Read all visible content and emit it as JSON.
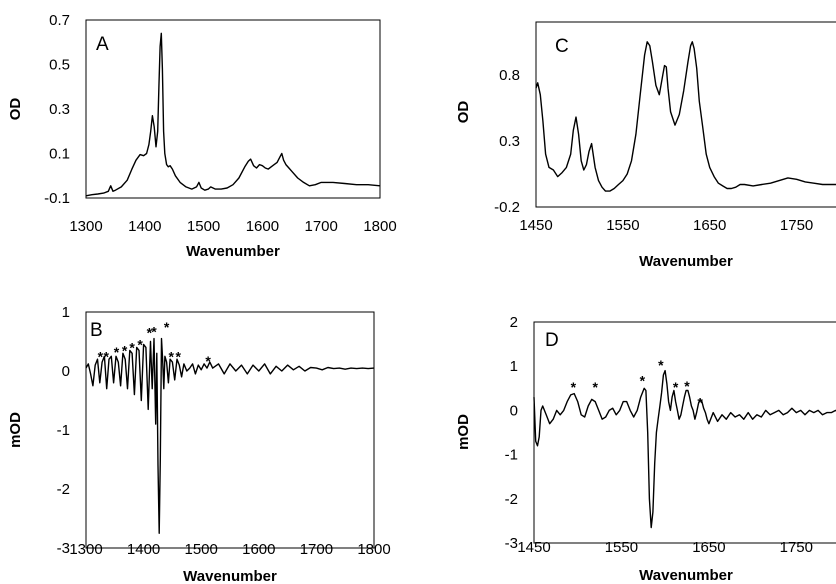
{
  "chart_data": [
    {
      "panel": "A",
      "type": "line",
      "xlabel": "Wavenumber",
      "ylabel": "OD",
      "xlim": [
        1300,
        1800
      ],
      "ylim": [
        -0.1,
        0.7
      ],
      "xticks": [
        "1300",
        "1400",
        "1500",
        "1600",
        "1700",
        "1800"
      ],
      "yticks": [
        "-0.1",
        "0.1",
        "0.3",
        "0.5",
        "0.7"
      ],
      "series": [
        {
          "x": [
            1300,
            1310,
            1320,
            1330,
            1338,
            1342,
            1346,
            1350,
            1360,
            1370,
            1378,
            1385,
            1392,
            1398,
            1403,
            1407,
            1410,
            1413,
            1416,
            1419,
            1422,
            1424,
            1426,
            1428,
            1430,
            1432,
            1434,
            1437,
            1440,
            1443,
            1447,
            1452,
            1460,
            1470,
            1480,
            1488,
            1492,
            1496,
            1502,
            1508,
            1512,
            1520,
            1530,
            1540,
            1550,
            1560,
            1570,
            1576,
            1580,
            1585,
            1590,
            1595,
            1600,
            1605,
            1610,
            1615,
            1620,
            1625,
            1630,
            1633,
            1636,
            1640,
            1645,
            1650,
            1660,
            1670,
            1680,
            1690,
            1700,
            1720,
            1740,
            1760,
            1780,
            1800
          ],
          "y": [
            -0.09,
            -0.085,
            -0.082,
            -0.078,
            -0.07,
            -0.045,
            -0.07,
            -0.065,
            -0.05,
            -0.02,
            0.03,
            0.07,
            0.095,
            0.09,
            0.1,
            0.14,
            0.2,
            0.27,
            0.22,
            0.13,
            0.2,
            0.4,
            0.58,
            0.64,
            0.48,
            0.2,
            0.1,
            0.05,
            0.04,
            0.045,
            0.03,
            0.0,
            -0.03,
            -0.05,
            -0.06,
            -0.05,
            -0.03,
            -0.055,
            -0.065,
            -0.06,
            -0.05,
            -0.06,
            -0.06,
            -0.055,
            -0.04,
            -0.01,
            0.04,
            0.065,
            0.075,
            0.045,
            0.035,
            0.05,
            0.045,
            0.035,
            0.03,
            0.04,
            0.05,
            0.06,
            0.085,
            0.1,
            0.07,
            0.05,
            0.035,
            0.02,
            -0.01,
            -0.03,
            -0.045,
            -0.04,
            -0.03,
            -0.03,
            -0.035,
            -0.04,
            -0.04,
            -0.045
          ]
        }
      ],
      "stars": []
    },
    {
      "panel": "B",
      "type": "line",
      "xlabel": "Wavenumber",
      "ylabel": "mOD",
      "xlim": [
        1300,
        1800
      ],
      "ylim": [
        -3,
        1
      ],
      "xticks": [
        "1300",
        "1400",
        "1500",
        "1600",
        "1700",
        "1800"
      ],
      "yticks": [
        "-3",
        "-2",
        "-1",
        "0",
        "1"
      ],
      "series": [
        {
          "x": [
            1300,
            1304,
            1308,
            1312,
            1316,
            1320,
            1324,
            1328,
            1332,
            1336,
            1340,
            1344,
            1348,
            1352,
            1356,
            1360,
            1364,
            1368,
            1372,
            1376,
            1380,
            1384,
            1388,
            1392,
            1396,
            1400,
            1404,
            1408,
            1412,
            1415,
            1418,
            1421,
            1423,
            1425,
            1427,
            1429,
            1431,
            1433,
            1435,
            1437,
            1440,
            1443,
            1446,
            1450,
            1454,
            1458,
            1462,
            1466,
            1470,
            1475,
            1480,
            1485,
            1490,
            1495,
            1500,
            1505,
            1510,
            1515,
            1520,
            1530,
            1540,
            1550,
            1560,
            1570,
            1580,
            1590,
            1600,
            1610,
            1620,
            1630,
            1640,
            1650,
            1660,
            1670,
            1680,
            1690,
            1700,
            1710,
            1720,
            1730,
            1740,
            1750,
            1760,
            1770,
            1780,
            1790,
            1800
          ],
          "y": [
            0.05,
            0.12,
            -0.05,
            -0.25,
            0.1,
            0.2,
            -0.2,
            0.15,
            0.25,
            -0.3,
            0.2,
            0.25,
            -0.2,
            0.25,
            0.15,
            -0.25,
            0.3,
            0.2,
            -0.3,
            0.35,
            0.3,
            -0.4,
            0.4,
            0.35,
            -0.5,
            0.45,
            0.4,
            -0.65,
            0.5,
            -0.3,
            0.55,
            -0.9,
            0.3,
            -1.6,
            -2.75,
            -1.5,
            0.55,
            0.2,
            -0.3,
            0.25,
            0.15,
            -0.2,
            0.2,
            0.15,
            -0.15,
            0.2,
            0.1,
            -0.1,
            0.12,
            0.0,
            0.05,
            0.12,
            -0.05,
            0.1,
            0.02,
            0.12,
            0.05,
            0.15,
            0.05,
            0.12,
            -0.05,
            0.12,
            0.0,
            0.1,
            -0.05,
            0.1,
            0.0,
            0.12,
            -0.05,
            0.08,
            0.0,
            0.1,
            0.02,
            0.08,
            0.0,
            0.06,
            0.05,
            0.02,
            0.06,
            0.04,
            0.05,
            0.03,
            0.05,
            0.04,
            0.05,
            0.04,
            0.05
          ]
        }
      ],
      "stars": [
        {
          "x": 1325,
          "y": 0.3,
          "text": "*"
        },
        {
          "x": 1335,
          "y": 0.3,
          "text": "*"
        },
        {
          "x": 1353,
          "y": 0.37,
          "text": "*"
        },
        {
          "x": 1367,
          "y": 0.4,
          "text": "*"
        },
        {
          "x": 1380,
          "y": 0.45,
          "text": "*"
        },
        {
          "x": 1394,
          "y": 0.5,
          "text": "*"
        },
        {
          "x": 1410,
          "y": 0.7,
          "text": "*"
        },
        {
          "x": 1418,
          "y": 0.72,
          "text": "*"
        },
        {
          "x": 1440,
          "y": 0.8,
          "text": "*"
        },
        {
          "x": 1448,
          "y": 0.3,
          "text": "*"
        },
        {
          "x": 1460,
          "y": 0.3,
          "text": "*"
        },
        {
          "x": 1512,
          "y": 0.22,
          "text": "*"
        }
      ]
    },
    {
      "panel": "C",
      "type": "line",
      "xlabel": "Wavenumber",
      "ylabel": "OD",
      "xlim": [
        1450,
        1800
      ],
      "ylim": [
        -0.2,
        1.2
      ],
      "xticks": [
        "1450",
        "1550",
        "1650",
        "1750"
      ],
      "yticks": [
        "-0.2",
        "0.3",
        "0.8"
      ],
      "series": [
        {
          "x": [
            1450,
            1452,
            1455,
            1458,
            1461,
            1465,
            1470,
            1475,
            1480,
            1485,
            1490,
            1493,
            1496,
            1499,
            1502,
            1505,
            1508,
            1511,
            1514,
            1518,
            1522,
            1526,
            1530,
            1535,
            1540,
            1545,
            1550,
            1555,
            1560,
            1565,
            1570,
            1575,
            1578,
            1581,
            1584,
            1588,
            1592,
            1596,
            1598,
            1600,
            1602,
            1605,
            1610,
            1615,
            1620,
            1625,
            1628,
            1630,
            1632,
            1635,
            1638,
            1642,
            1646,
            1650,
            1655,
            1660,
            1665,
            1670,
            1675,
            1680,
            1685,
            1690,
            1700,
            1710,
            1720,
            1730,
            1740,
            1750,
            1760,
            1770,
            1780,
            1790,
            1800
          ],
          "y": [
            0.7,
            0.74,
            0.65,
            0.45,
            0.2,
            0.1,
            0.08,
            0.03,
            0.06,
            0.1,
            0.2,
            0.38,
            0.48,
            0.35,
            0.15,
            0.08,
            0.12,
            0.22,
            0.28,
            0.1,
            0.0,
            -0.05,
            -0.08,
            -0.08,
            -0.06,
            -0.03,
            0.0,
            0.05,
            0.15,
            0.35,
            0.65,
            0.95,
            1.05,
            1.02,
            0.9,
            0.72,
            0.65,
            0.8,
            0.87,
            0.86,
            0.7,
            0.52,
            0.42,
            0.5,
            0.68,
            0.9,
            1.02,
            1.05,
            1.0,
            0.85,
            0.6,
            0.4,
            0.2,
            0.1,
            0.03,
            -0.02,
            -0.04,
            -0.06,
            -0.06,
            -0.05,
            -0.03,
            -0.03,
            -0.04,
            -0.03,
            -0.02,
            0.0,
            0.02,
            0.01,
            -0.01,
            -0.02,
            -0.03,
            -0.03,
            -0.03
          ]
        }
      ],
      "stars": []
    },
    {
      "panel": "D",
      "type": "line",
      "xlabel": "Wavenumber",
      "ylabel": "mOD",
      "xlim": [
        1450,
        1800
      ],
      "ylim": [
        -3,
        2
      ],
      "xticks": [
        "1450",
        "1550",
        "1650",
        "1750"
      ],
      "yticks": [
        "-3",
        "-2",
        "-1",
        "0",
        "1",
        "2"
      ],
      "series": [
        {
          "x": [
            1450,
            1452,
            1454,
            1456,
            1458,
            1460,
            1464,
            1468,
            1472,
            1476,
            1480,
            1484,
            1488,
            1492,
            1496,
            1500,
            1504,
            1508,
            1512,
            1516,
            1520,
            1524,
            1528,
            1532,
            1536,
            1540,
            1544,
            1548,
            1552,
            1556,
            1560,
            1564,
            1568,
            1572,
            1576,
            1578,
            1580,
            1582,
            1584,
            1586,
            1588,
            1590,
            1592,
            1594,
            1596,
            1598,
            1600,
            1602,
            1604,
            1606,
            1608,
            1610,
            1612,
            1614,
            1616,
            1618,
            1620,
            1622,
            1624,
            1626,
            1628,
            1630,
            1632,
            1634,
            1636,
            1638,
            1640,
            1642,
            1644,
            1646,
            1648,
            1650,
            1655,
            1660,
            1665,
            1670,
            1675,
            1680,
            1685,
            1690,
            1695,
            1700,
            1705,
            1710,
            1715,
            1720,
            1725,
            1730,
            1735,
            1740,
            1745,
            1750,
            1755,
            1760,
            1765,
            1770,
            1775,
            1780,
            1785,
            1790,
            1795,
            1800
          ],
          "y": [
            0.3,
            -0.7,
            -0.8,
            -0.6,
            0.0,
            0.1,
            -0.1,
            -0.3,
            -0.2,
            0.0,
            -0.1,
            0.0,
            0.2,
            0.35,
            0.38,
            0.2,
            -0.1,
            -0.15,
            0.1,
            0.25,
            0.2,
            0.0,
            -0.2,
            -0.15,
            0.0,
            0.05,
            -0.1,
            0.0,
            0.2,
            0.2,
            0.0,
            -0.15,
            0.0,
            0.3,
            0.5,
            0.45,
            -0.5,
            -2.0,
            -2.65,
            -2.3,
            -1.2,
            -0.5,
            -0.2,
            0.1,
            0.4,
            0.8,
            0.9,
            0.6,
            0.2,
            0.0,
            0.3,
            0.45,
            0.2,
            0.0,
            -0.2,
            -0.1,
            0.1,
            0.3,
            0.45,
            0.45,
            0.3,
            0.1,
            0.0,
            -0.2,
            -0.05,
            0.15,
            0.25,
            0.2,
            0.05,
            -0.05,
            -0.2,
            -0.3,
            -0.05,
            -0.25,
            -0.1,
            -0.2,
            -0.05,
            -0.15,
            -0.1,
            -0.2,
            -0.05,
            -0.2,
            -0.1,
            -0.15,
            0.0,
            -0.1,
            -0.05,
            0.0,
            -0.1,
            -0.05,
            0.05,
            -0.05,
            0.0,
            -0.1,
            0.0,
            -0.05,
            0.0,
            -0.1,
            -0.05,
            -0.05,
            0.0,
            -0.05
          ]
        }
      ],
      "stars": [
        {
          "x": 1495,
          "y": 0.6,
          "text": "*"
        },
        {
          "x": 1520,
          "y": 0.6,
          "text": "*"
        },
        {
          "x": 1574,
          "y": 0.75,
          "text": "*"
        },
        {
          "x": 1595,
          "y": 1.1,
          "text": "*"
        },
        {
          "x": 1612,
          "y": 0.6,
          "text": "*"
        },
        {
          "x": 1625,
          "y": 0.62,
          "text": "*"
        },
        {
          "x": 1640,
          "y": 0.25,
          "text": "*"
        }
      ]
    }
  ]
}
